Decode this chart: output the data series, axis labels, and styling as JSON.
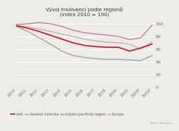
{
  "title": "Vývoj insolvencí podle regionů\n(index 2010 = 100)",
  "years": [
    "2010",
    "2011",
    "2012",
    "2013",
    "2014",
    "2015",
    "2016",
    "2017",
    "2018",
    "2019",
    "2020",
    "2021f",
    "2022f"
  ],
  "svet": [
    97,
    93,
    88,
    82,
    76,
    70,
    66,
    64,
    63,
    63,
    57,
    62,
    68
  ],
  "severni_amerika": [
    96,
    88,
    78,
    68,
    57,
    50,
    47,
    45,
    44,
    44,
    43,
    42,
    50
  ],
  "asijsko_pacificky": [
    99,
    100,
    102,
    100,
    96,
    90,
    86,
    84,
    82,
    80,
    75,
    78,
    98
  ],
  "evropa": [
    97,
    95,
    92,
    88,
    84,
    80,
    76,
    73,
    71,
    70,
    68,
    60,
    72
  ],
  "colors": {
    "svet": "#cc0000",
    "severni_amerika": "#999999",
    "asijsko_pacificky": "#c97070",
    "evropa": "#d4a0a0"
  },
  "ylim": [
    0,
    108
  ],
  "yticks": [
    0,
    20,
    40,
    60,
    80,
    100
  ],
  "source": "Zdroj: Atradius",
  "legend": [
    "svět",
    "Severní Amerika",
    "Asijsko-pacifický region",
    "Evropa"
  ],
  "background_color": "#eeece8"
}
